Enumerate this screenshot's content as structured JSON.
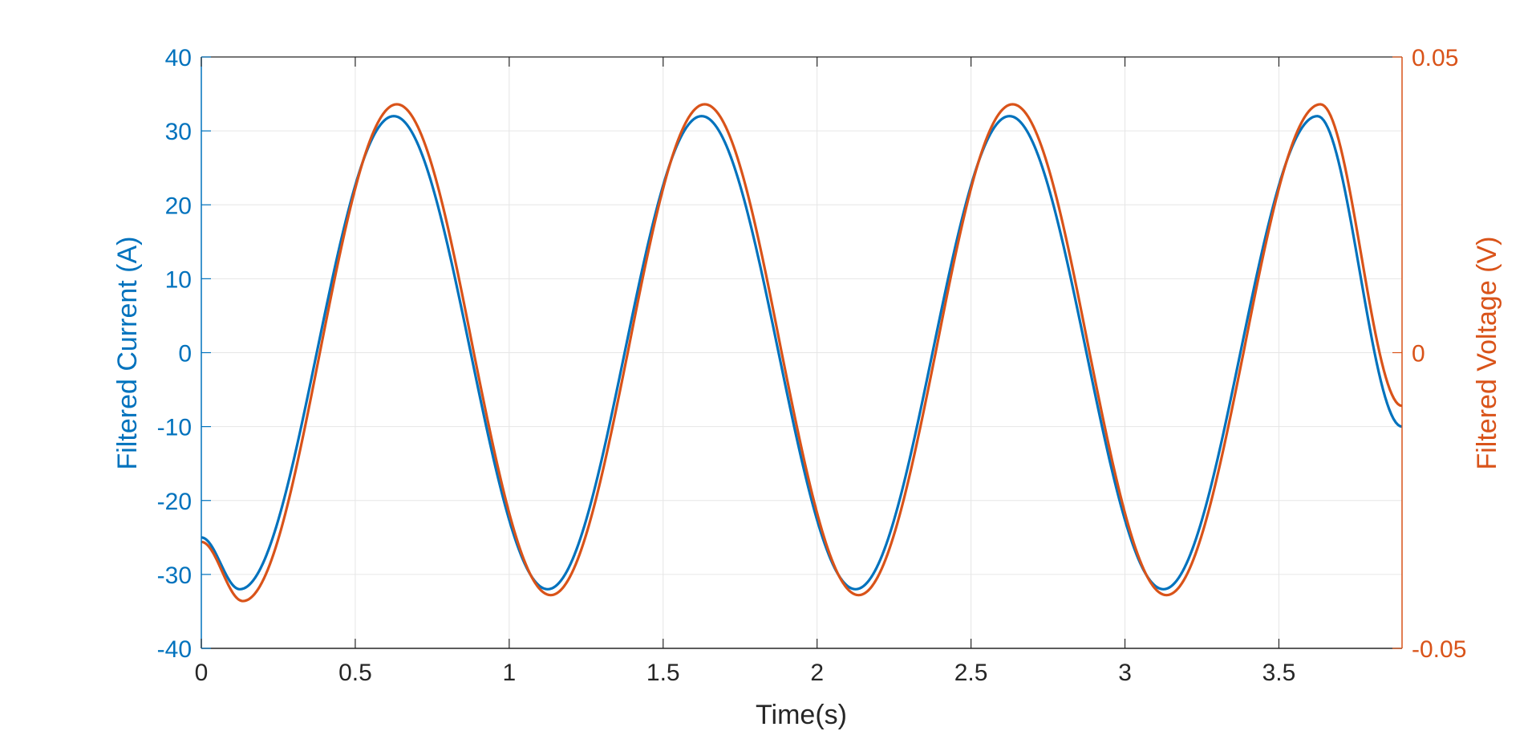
{
  "chart_data": {
    "type": "line",
    "title": "",
    "xlabel": "Time(s)",
    "ylabel_left": "Filtered Current (A)",
    "ylabel_right": "Filtered Voltage (V)",
    "xlim": [
      0,
      3.9
    ],
    "ylim_left": [
      -40,
      40
    ],
    "ylim_right": [
      -0.05,
      0.05
    ],
    "x_ticks": [
      0,
      0.5,
      1,
      1.5,
      2,
      2.5,
      3,
      3.5
    ],
    "x_tick_labels": [
      "0",
      "0.5",
      "1",
      "1.5",
      "2",
      "2.5",
      "3",
      "3.5"
    ],
    "y_left_ticks": [
      40,
      30,
      20,
      10,
      0,
      -10,
      -20,
      -30,
      -40
    ],
    "y_left_tick_labels": [
      "40",
      "30",
      "20",
      "10",
      "0",
      "-10",
      "-20",
      "-30",
      "-40"
    ],
    "y_right_ticks": [
      0.05,
      0,
      -0.05
    ],
    "y_right_tick_labels": [
      "0.05",
      "0",
      "-0.05"
    ],
    "grid": true,
    "series": [
      {
        "axis": "left",
        "color": "#0072BD",
        "x": [
          0,
          0.125,
          0.375,
          0.625,
          0.875,
          1.125,
          1.375,
          1.625,
          1.875,
          2.125,
          2.375,
          2.625,
          2.875,
          3.125,
          3.375,
          3.625,
          3.9
        ],
        "y": [
          -25,
          -32,
          0,
          32,
          0,
          -32,
          0,
          32,
          0,
          -32,
          0,
          32,
          0,
          -32,
          0,
          32,
          -10
        ]
      },
      {
        "axis": "right",
        "color": "#D95319",
        "x": [
          0,
          0.135,
          0.385,
          0.635,
          0.885,
          1.135,
          1.385,
          1.635,
          1.885,
          2.135,
          2.385,
          2.635,
          2.885,
          3.135,
          3.385,
          3.635,
          3.9
        ],
        "y": [
          -0.032,
          -0.042,
          0,
          0.042,
          0,
          -0.041,
          0,
          0.042,
          0,
          -0.041,
          0,
          0.042,
          0,
          -0.041,
          0,
          0.042,
          -0.009
        ]
      }
    ],
    "colors": {
      "left_axis": "#0072BD",
      "right_axis": "#D95319",
      "grid": "#e6e6e6",
      "box": "#262626"
    }
  }
}
